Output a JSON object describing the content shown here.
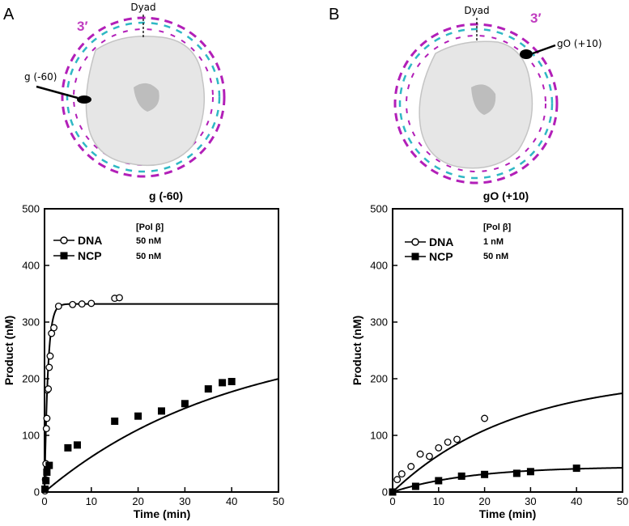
{
  "figure": {
    "panel_a": {
      "letter": "A",
      "dyad_label": "Dyad",
      "prime_label": "3′",
      "site_label": "g (-60)"
    },
    "panel_b": {
      "letter": "B",
      "dyad_label": "Dyad",
      "prime_label": "3′",
      "site_label": "gO (+10)"
    },
    "colors": {
      "strand_magenta": "#b21fb8",
      "strand_cyan": "#2fb8c4",
      "histone_gray": "#e6e6e6",
      "ink": "#000000"
    }
  },
  "chart_data": [
    {
      "type": "scatter",
      "title": "g (-60)",
      "xlabel": "Time (min)",
      "ylabel": "Product (nM)",
      "xlim": [
        0,
        50
      ],
      "ylim": [
        0,
        500
      ],
      "xticks": [
        0,
        10,
        20,
        30,
        40,
        50
      ],
      "yticks": [
        0,
        100,
        200,
        300,
        400,
        500
      ],
      "legend": {
        "header": "[Pol β]",
        "placement": "top-left",
        "entries": [
          {
            "name": "DNA",
            "marker": "open-circle",
            "conc": "50 nM"
          },
          {
            "name": "NCP",
            "marker": "filled-square",
            "conc": "50 nM"
          }
        ]
      },
      "series": [
        {
          "name": "DNA",
          "marker": "open-circle",
          "x": [
            0.1,
            0.2,
            0.3,
            0.4,
            0.5,
            0.6,
            0.8,
            1.0,
            1.2,
            1.5,
            2.0,
            3.0,
            6.0,
            8.0,
            10.0,
            15.0,
            16.0
          ],
          "y": [
            2,
            22,
            50,
            112,
            130,
            180,
            182,
            220,
            240,
            280,
            290,
            328,
            331,
            332,
            333,
            342,
            343
          ],
          "fit": {
            "model": "single-exponential",
            "amplitude": 332,
            "rate": 1.4
          }
        },
        {
          "name": "NCP",
          "marker": "filled-square",
          "x": [
            0.1,
            0.3,
            0.5,
            1.0,
            5.0,
            7.0,
            15.0,
            20.0,
            25.0,
            30.0,
            35.0,
            38.0,
            40.0
          ],
          "y": [
            5,
            20,
            35,
            47,
            78,
            83,
            125,
            134,
            143,
            156,
            182,
            193,
            195
          ],
          "fit": {
            "model": "single-exponential",
            "amplitude": 280,
            "rate": 0.025
          }
        }
      ]
    },
    {
      "type": "scatter",
      "title": "gO (+10)",
      "xlabel": "Time (min)",
      "ylabel": "Product (nM)",
      "xlim": [
        0,
        50
      ],
      "ylim": [
        0,
        500
      ],
      "xticks": [
        0,
        10,
        20,
        30,
        40,
        50
      ],
      "yticks": [
        0,
        100,
        200,
        300,
        400,
        500
      ],
      "legend": {
        "header": "[Pol β]",
        "placement": "top-left",
        "entries": [
          {
            "name": "DNA",
            "marker": "open-circle",
            "conc": "1 nM"
          },
          {
            "name": "NCP",
            "marker": "filled-square",
            "conc": "50 nM"
          }
        ]
      },
      "series": [
        {
          "name": "DNA",
          "marker": "open-circle",
          "x": [
            0,
            1,
            2,
            4,
            6,
            8,
            10,
            12,
            14,
            20
          ],
          "y": [
            0,
            22,
            32,
            45,
            67,
            63,
            78,
            88,
            93,
            130
          ],
          "fit": {
            "model": "single-exponential",
            "amplitude": 205,
            "rate": 0.038
          }
        },
        {
          "name": "NCP",
          "marker": "filled-square",
          "x": [
            0,
            5,
            10,
            15,
            20,
            27,
            30,
            40
          ],
          "y": [
            0,
            10,
            20,
            28,
            31,
            33,
            36,
            42
          ],
          "fit": {
            "model": "single-exponential",
            "amplitude": 45,
            "rate": 0.06
          }
        }
      ]
    }
  ]
}
